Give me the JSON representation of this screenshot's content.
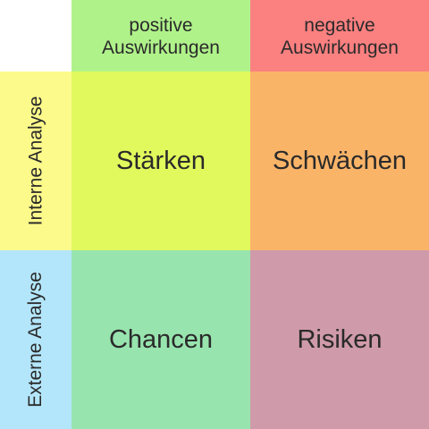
{
  "columns": {
    "positive": {
      "line1": "positive",
      "line2": "Auswirkungen"
    },
    "negative": {
      "line1": "negative",
      "line2": "Auswirkungen"
    }
  },
  "rows": {
    "internal": "Interne Analyse",
    "external": "Externe Analyse"
  },
  "quadrants": {
    "strengths": "Stärken",
    "weaknesses": "Schwächen",
    "opportunities": "Chancen",
    "threats": "Risiken"
  },
  "colors": {
    "positive_header": "#b0f28a",
    "negative_header": "#fb8080",
    "internal_header": "#fdfa8c",
    "external_header": "#b4e6fb",
    "strengths": "#e1f95c",
    "weaknesses": "#fab468",
    "opportunities": "#98e4ae",
    "threats": "#cf9aaa"
  }
}
